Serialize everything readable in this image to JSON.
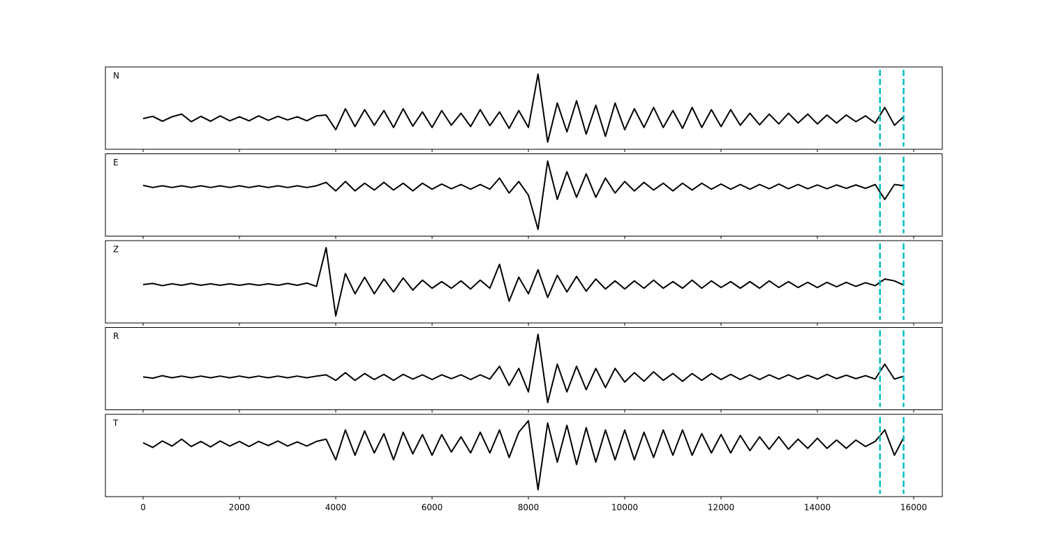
{
  "chart_data": {
    "type": "line",
    "x": [
      0,
      200,
      400,
      600,
      800,
      1000,
      1200,
      1400,
      1600,
      1800,
      2000,
      2200,
      2400,
      2600,
      2800,
      3000,
      3200,
      3400,
      3600,
      3800,
      4000,
      4200,
      4400,
      4600,
      4800,
      5000,
      5200,
      5400,
      5600,
      5800,
      6000,
      6200,
      6400,
      6600,
      6800,
      7000,
      7200,
      7400,
      7600,
      7800,
      8000,
      8200,
      8400,
      8600,
      8800,
      9000,
      9200,
      9400,
      9600,
      9800,
      10000,
      10200,
      10400,
      10600,
      10800,
      11000,
      11200,
      11400,
      11600,
      11800,
      12000,
      12200,
      12400,
      12600,
      12800,
      13000,
      13200,
      13400,
      13600,
      13800,
      14000,
      14200,
      14400,
      14600,
      14800,
      15000,
      15200,
      15400,
      15600,
      15800
    ],
    "xlim": [
      -783,
      16594
    ],
    "xticks": [
      0,
      2000,
      4000,
      6000,
      8000,
      10000,
      12000,
      14000,
      16000
    ],
    "vlines": {
      "x": [
        15300,
        15790
      ],
      "color": "#00bfbf",
      "style": "dashed"
    },
    "series": [
      {
        "name": "N",
        "color": "#000000",
        "ylim": [
          -0.69,
          1.16
        ],
        "values": [
          0.0,
          0.05,
          -0.06,
          0.04,
          0.1,
          -0.07,
          0.05,
          -0.06,
          0.06,
          -0.05,
          0.04,
          -0.05,
          0.06,
          -0.04,
          0.05,
          -0.03,
          0.04,
          -0.05,
          0.06,
          0.08,
          -0.25,
          0.22,
          -0.18,
          0.2,
          -0.15,
          0.18,
          -0.2,
          0.22,
          -0.17,
          0.15,
          -0.2,
          0.18,
          -0.15,
          0.12,
          -0.18,
          0.2,
          -0.16,
          0.15,
          -0.22,
          0.18,
          -0.2,
          1.0,
          -0.53,
          0.35,
          -0.3,
          0.4,
          -0.35,
          0.3,
          -0.4,
          0.35,
          -0.25,
          0.22,
          -0.2,
          0.25,
          -0.2,
          0.18,
          -0.22,
          0.25,
          -0.2,
          0.2,
          -0.18,
          0.2,
          -0.15,
          0.12,
          -0.14,
          0.1,
          -0.12,
          0.12,
          -0.1,
          0.1,
          -0.12,
          0.08,
          -0.1,
          0.08,
          -0.07,
          0.06,
          -0.1,
          0.25,
          -0.15,
          0.05
        ]
      },
      {
        "name": "E",
        "color": "#000000",
        "ylim": [
          -1.16,
          0.77
        ],
        "values": [
          0.03,
          -0.02,
          0.02,
          -0.02,
          0.02,
          -0.02,
          0.02,
          -0.02,
          0.02,
          -0.02,
          0.02,
          -0.02,
          0.02,
          -0.02,
          0.02,
          -0.02,
          0.02,
          -0.02,
          0.02,
          0.1,
          -0.1,
          0.12,
          -0.1,
          0.08,
          -0.08,
          0.1,
          -0.08,
          0.08,
          -0.1,
          0.08,
          -0.06,
          0.06,
          -0.05,
          0.05,
          -0.06,
          0.05,
          -0.06,
          0.2,
          -0.15,
          0.12,
          -0.2,
          -1.0,
          0.6,
          -0.3,
          0.35,
          -0.25,
          0.3,
          -0.25,
          0.2,
          -0.15,
          0.12,
          -0.1,
          0.1,
          -0.08,
          0.08,
          -0.1,
          0.08,
          -0.08,
          0.08,
          -0.06,
          0.06,
          -0.06,
          0.05,
          -0.06,
          0.05,
          -0.05,
          0.06,
          -0.05,
          0.05,
          -0.05,
          0.04,
          -0.05,
          0.04,
          -0.04,
          0.04,
          -0.04,
          0.05,
          -0.3,
          0.05,
          0.02
        ]
      },
      {
        "name": "Z",
        "color": "#000000",
        "ylim": [
          -1.04,
          1.19
        ],
        "values": [
          0.0,
          0.03,
          -0.03,
          0.02,
          -0.02,
          0.03,
          -0.02,
          0.02,
          -0.02,
          0.02,
          -0.02,
          0.02,
          -0.02,
          0.02,
          -0.02,
          0.03,
          -0.02,
          0.04,
          -0.05,
          1.0,
          -0.85,
          0.3,
          -0.25,
          0.2,
          -0.25,
          0.15,
          -0.2,
          0.18,
          -0.15,
          0.12,
          -0.1,
          0.08,
          -0.1,
          0.1,
          -0.12,
          0.12,
          -0.1,
          0.55,
          -0.45,
          0.2,
          -0.25,
          0.4,
          -0.35,
          0.25,
          -0.2,
          0.22,
          -0.18,
          0.15,
          -0.12,
          0.1,
          -0.12,
          0.1,
          -0.1,
          0.12,
          -0.1,
          0.08,
          -0.1,
          0.12,
          -0.1,
          0.1,
          -0.08,
          0.08,
          -0.1,
          0.08,
          -0.1,
          0.1,
          -0.08,
          0.08,
          -0.08,
          0.06,
          -0.08,
          0.06,
          -0.06,
          0.06,
          -0.05,
          0.05,
          -0.03,
          0.15,
          0.1,
          -0.02
        ]
      },
      {
        "name": "R",
        "color": "#000000",
        "ylim": [
          -0.77,
          1.16
        ],
        "values": [
          0.0,
          -0.03,
          0.03,
          -0.02,
          0.02,
          -0.02,
          0.02,
          -0.02,
          0.02,
          -0.02,
          0.02,
          -0.02,
          0.02,
          -0.02,
          0.02,
          -0.02,
          0.02,
          -0.02,
          0.02,
          0.05,
          -0.08,
          0.1,
          -0.08,
          0.08,
          -0.06,
          0.06,
          -0.08,
          0.06,
          -0.05,
          0.05,
          -0.06,
          0.05,
          -0.04,
          0.05,
          -0.06,
          0.05,
          -0.05,
          0.25,
          -0.2,
          0.2,
          -0.35,
          1.0,
          -0.6,
          0.3,
          -0.35,
          0.25,
          -0.3,
          0.2,
          -0.25,
          0.2,
          -0.12,
          0.1,
          -0.1,
          0.12,
          -0.08,
          0.08,
          -0.1,
          0.08,
          -0.08,
          0.08,
          -0.06,
          0.06,
          -0.06,
          0.05,
          -0.06,
          0.05,
          -0.05,
          0.05,
          -0.05,
          0.04,
          -0.05,
          0.06,
          -0.04,
          0.04,
          -0.04,
          0.03,
          -0.05,
          0.3,
          -0.05,
          0.02
        ]
      },
      {
        "name": "T",
        "color": "#000000",
        "ylim": [
          -1.15,
          0.64
        ],
        "values": [
          0.02,
          -0.08,
          0.06,
          -0.05,
          0.1,
          -0.06,
          0.05,
          -0.07,
          0.06,
          -0.05,
          0.05,
          -0.06,
          0.05,
          -0.04,
          0.06,
          -0.05,
          0.04,
          -0.05,
          0.05,
          0.1,
          -0.35,
          0.3,
          -0.25,
          0.28,
          -0.2,
          0.22,
          -0.35,
          0.25,
          -0.22,
          0.2,
          -0.25,
          0.2,
          -0.18,
          0.15,
          -0.2,
          0.25,
          -0.2,
          0.3,
          -0.3,
          0.25,
          0.5,
          -1.0,
          0.45,
          -0.4,
          0.4,
          -0.45,
          0.35,
          -0.4,
          0.3,
          -0.35,
          0.3,
          -0.35,
          0.25,
          -0.3,
          0.3,
          -0.25,
          0.3,
          -0.25,
          0.22,
          -0.2,
          0.2,
          -0.2,
          0.18,
          -0.15,
          0.15,
          -0.12,
          0.15,
          -0.12,
          0.1,
          -0.1,
          0.12,
          -0.1,
          0.08,
          -0.1,
          0.08,
          -0.06,
          0.05,
          0.3,
          -0.25,
          0.15
        ]
      }
    ]
  }
}
